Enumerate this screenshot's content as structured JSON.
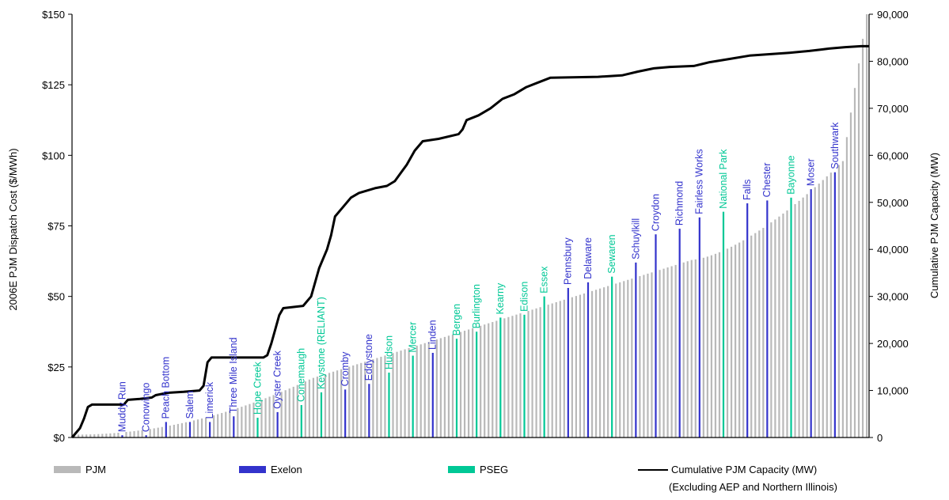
{
  "chart_data": {
    "type": "bar",
    "title": "",
    "ylabel_left": "2006E PJM Dispatch Cost ($/MWh)",
    "ylabel_right": "Cumulative PJM Capacity (MW)",
    "yleft_ticks": [
      "$0",
      "$25",
      "$50",
      "$75",
      "$100",
      "$125",
      "$150"
    ],
    "yright_ticks": [
      "0",
      "10,000",
      "20,000",
      "30,000",
      "40,000",
      "50,000",
      "60,000",
      "70,000",
      "80,000",
      "90,000"
    ],
    "ylim_left": [
      0,
      150
    ],
    "ylim_right": [
      0,
      90000
    ],
    "grid": false,
    "legend_position": "bottom",
    "series": [
      {
        "name": "PJM",
        "color": "#b9b9b9"
      },
      {
        "name": "Exelon",
        "color": "#3333cc"
      },
      {
        "name": "PSEG",
        "color": "#00c896"
      },
      {
        "name": "Cumulative PJM Capacity (MW)",
        "color": "#000000",
        "sub": "(Excluding AEP and Northern Illinois)"
      }
    ],
    "plants": [
      {
        "name": "Muddy Run",
        "company": "Exelon",
        "cost": 0.8
      },
      {
        "name": "Conowingo",
        "company": "Exelon",
        "cost": 0.8
      },
      {
        "name": "Peach Bottom",
        "company": "Exelon",
        "cost": 5.5
      },
      {
        "name": "Salem",
        "company": "Exelon",
        "cost": 5.5
      },
      {
        "name": "Limerick",
        "company": "Exelon",
        "cost": 5.5
      },
      {
        "name": "Three Mile Island",
        "company": "Exelon",
        "cost": 7.5
      },
      {
        "name": "Hope Creek",
        "company": "PSEG",
        "cost": 7.0
      },
      {
        "name": "Oyster Creek",
        "company": "Exelon",
        "cost": 9.0
      },
      {
        "name": "Conemaugh",
        "company": "PSEG",
        "cost": 11.5
      },
      {
        "name": "Keystone (RELIANT)",
        "company": "PSEG",
        "cost": 16.0
      },
      {
        "name": "Cromby",
        "company": "Exelon",
        "cost": 17.0
      },
      {
        "name": "Eddystone",
        "company": "Exelon",
        "cost": 19.0
      },
      {
        "name": "Hudson",
        "company": "PSEG",
        "cost": 23.0
      },
      {
        "name": "Mercer",
        "company": "PSEG",
        "cost": 29.0
      },
      {
        "name": "Linden",
        "company": "Exelon",
        "cost": 30.0
      },
      {
        "name": "Bergen",
        "company": "PSEG",
        "cost": 35.0
      },
      {
        "name": "Burlington",
        "company": "PSEG",
        "cost": 37.5
      },
      {
        "name": "Kearny",
        "company": "PSEG",
        "cost": 42.5
      },
      {
        "name": "Edison",
        "company": "PSEG",
        "cost": 43.5
      },
      {
        "name": "Essex",
        "company": "PSEG",
        "cost": 50.0
      },
      {
        "name": "Pennsbury",
        "company": "Exelon",
        "cost": 53.0
      },
      {
        "name": "Delaware",
        "company": "Exelon",
        "cost": 55.0
      },
      {
        "name": "Sewaren",
        "company": "PSEG",
        "cost": 57.0
      },
      {
        "name": "Schuylkill",
        "company": "Exelon",
        "cost": 62.0
      },
      {
        "name": "Croydon",
        "company": "Exelon",
        "cost": 72.0
      },
      {
        "name": "Richmond",
        "company": "Exelon",
        "cost": 74.0
      },
      {
        "name": "Fairless Works",
        "company": "Exelon",
        "cost": 78.0
      },
      {
        "name": "National Park",
        "company": "PSEG",
        "cost": 80.0
      },
      {
        "name": "Falls",
        "company": "Exelon",
        "cost": 83.0
      },
      {
        "name": "Chester",
        "company": "Exelon",
        "cost": 84.0
      },
      {
        "name": "Bayonne",
        "company": "PSEG",
        "cost": 85.0
      },
      {
        "name": "Moser",
        "company": "Exelon",
        "cost": 88.0
      },
      {
        "name": "Southwark",
        "company": "Exelon",
        "cost": 94.0
      }
    ],
    "cumulative_capacity_points": [
      [
        0,
        0
      ],
      [
        2,
        2000
      ],
      [
        3,
        4000
      ],
      [
        4,
        6500
      ],
      [
        5,
        7000
      ],
      [
        10,
        7000
      ],
      [
        13,
        7000
      ],
      [
        14,
        8000
      ],
      [
        17,
        8200
      ],
      [
        20,
        8500
      ],
      [
        21,
        9000
      ],
      [
        24,
        9500
      ],
      [
        28,
        9700
      ],
      [
        32,
        10000
      ],
      [
        33,
        11000
      ],
      [
        34,
        16000
      ],
      [
        35,
        17000
      ],
      [
        48,
        17000
      ],
      [
        49,
        17500
      ],
      [
        50,
        20000
      ],
      [
        51,
        23000
      ],
      [
        52,
        26000
      ],
      [
        53,
        27500
      ],
      [
        58,
        28000
      ],
      [
        60,
        30000
      ],
      [
        62,
        36000
      ],
      [
        64,
        40000
      ],
      [
        65,
        43000
      ],
      [
        66,
        47000
      ],
      [
        68,
        49000
      ],
      [
        70,
        51000
      ],
      [
        72,
        52000
      ],
      [
        74,
        52500
      ],
      [
        76,
        53000
      ],
      [
        79,
        53500
      ],
      [
        81,
        54500
      ],
      [
        84,
        58000
      ],
      [
        86,
        61000
      ],
      [
        88,
        63000
      ],
      [
        92,
        63500
      ],
      [
        97,
        64500
      ],
      [
        98,
        65500
      ],
      [
        99,
        67500
      ],
      [
        102,
        68500
      ],
      [
        105,
        70000
      ],
      [
        108,
        72000
      ],
      [
        111,
        73000
      ],
      [
        114,
        74500
      ],
      [
        117,
        75500
      ],
      [
        120,
        76500
      ],
      [
        132,
        76700
      ],
      [
        138,
        77000
      ],
      [
        142,
        77800
      ],
      [
        146,
        78500
      ],
      [
        150,
        78800
      ],
      [
        156,
        79000
      ],
      [
        160,
        79800
      ],
      [
        165,
        80500
      ],
      [
        170,
        81200
      ],
      [
        175,
        81500
      ],
      [
        180,
        81800
      ],
      [
        185,
        82200
      ],
      [
        188,
        82500
      ],
      [
        190,
        82700
      ],
      [
        194,
        83000
      ],
      [
        198,
        83200
      ],
      [
        200,
        83200
      ]
    ]
  }
}
